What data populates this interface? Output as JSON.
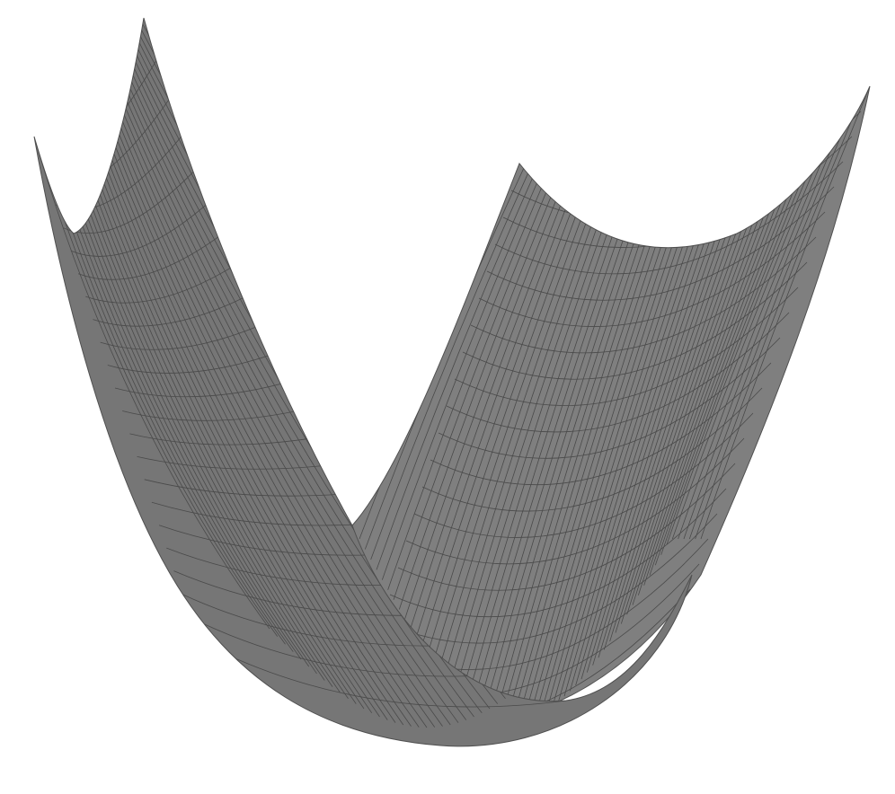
{
  "figure": {
    "kind": "3d-surface-plot",
    "shape": "paraboloid",
    "surface_type": "wireframe-shaded-mesh",
    "colors": {
      "background": "#ffffff",
      "surface_fill": "#7d7d7d",
      "surface_fill_dark": "#6a6a6a",
      "mesh_lines": "#4a4a4a"
    }
  }
}
